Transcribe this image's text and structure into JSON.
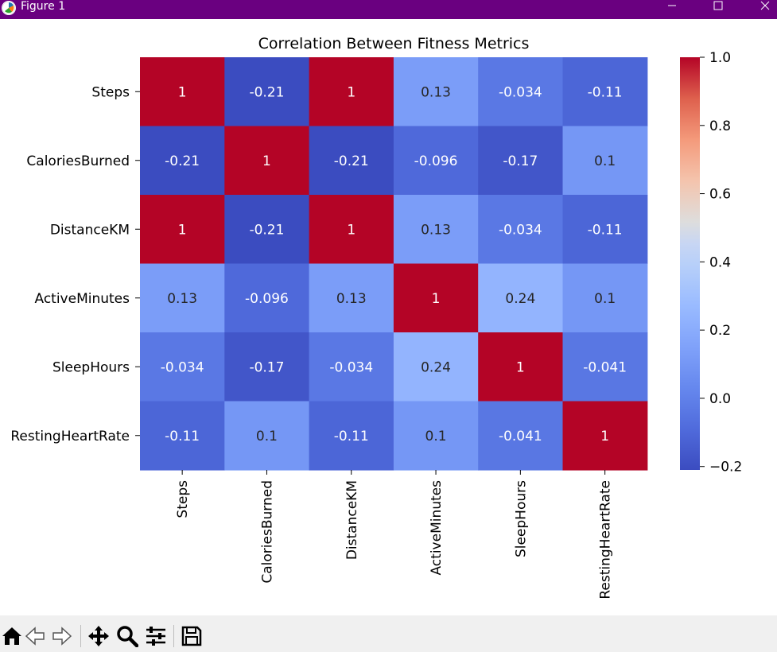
{
  "window": {
    "title": "Figure 1"
  },
  "toolbar": {
    "buttons": [
      {
        "name": "home-icon"
      },
      {
        "name": "back-arrow-icon"
      },
      {
        "name": "forward-arrow-icon"
      },
      {
        "name": "pan-icon"
      },
      {
        "name": "zoom-icon"
      },
      {
        "name": "configure-subplots-icon"
      },
      {
        "name": "save-icon"
      }
    ]
  },
  "chart_data": {
    "type": "heatmap",
    "title": "Correlation Between Fitness Metrics",
    "rows": [
      "Steps",
      "CaloriesBurned",
      "DistanceKM",
      "ActiveMinutes",
      "SleepHours",
      "RestingHeartRate"
    ],
    "columns": [
      "Steps",
      "CaloriesBurned",
      "DistanceKM",
      "ActiveMinutes",
      "SleepHours",
      "RestingHeartRate"
    ],
    "values": [
      [
        1,
        -0.21,
        1,
        0.13,
        -0.034,
        -0.11
      ],
      [
        -0.21,
        1,
        -0.21,
        -0.096,
        -0.17,
        0.1
      ],
      [
        1,
        -0.21,
        1,
        0.13,
        -0.034,
        -0.11
      ],
      [
        0.13,
        -0.096,
        0.13,
        1,
        0.24,
        0.1
      ],
      [
        -0.034,
        -0.17,
        -0.034,
        0.24,
        1,
        -0.041
      ],
      [
        -0.11,
        0.1,
        -0.11,
        0.1,
        -0.041,
        1
      ]
    ],
    "labels": [
      [
        "1",
        "-0.21",
        "1",
        "0.13",
        "-0.034",
        "-0.11"
      ],
      [
        "-0.21",
        "1",
        "-0.21",
        "-0.096",
        "-0.17",
        "0.1"
      ],
      [
        "1",
        "-0.21",
        "1",
        "0.13",
        "-0.034",
        "-0.11"
      ],
      [
        "0.13",
        "-0.096",
        "0.13",
        "1",
        "0.24",
        "0.1"
      ],
      [
        "-0.034",
        "-0.17",
        "-0.034",
        "0.24",
        "1",
        "-0.041"
      ],
      [
        "-0.11",
        "0.1",
        "-0.11",
        "0.1",
        "-0.041",
        "1"
      ]
    ],
    "colormap": "coolwarm",
    "colorbar": {
      "range": [
        -0.21,
        1.0
      ],
      "ticks": [
        1.0,
        0.8,
        0.6,
        0.4,
        0.2,
        0.0,
        -0.2
      ],
      "tick_labels": [
        "1.0",
        "0.8",
        "0.6",
        "0.4",
        "0.2",
        "0.0",
        "−0.2"
      ]
    },
    "colors": {
      "low": "#3b4cc0",
      "mid": "#dddddd",
      "high": "#b40426"
    }
  }
}
